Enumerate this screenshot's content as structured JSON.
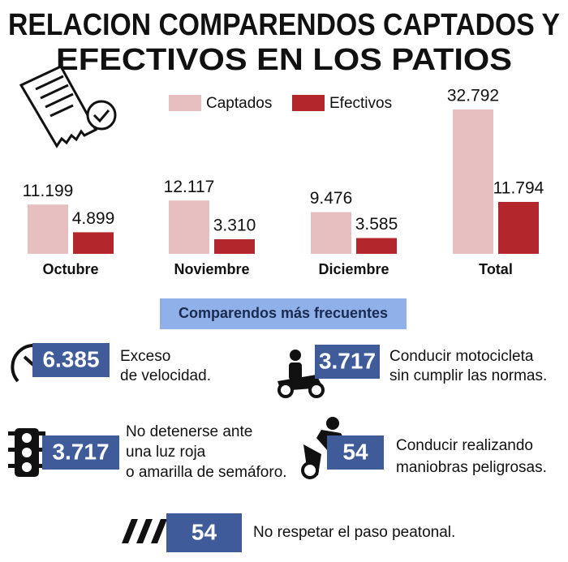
{
  "chart_data": {
    "type": "bar",
    "title": [
      "RELACION COMPARENDOS CAPTADOS Y",
      "EFECTIVOS EN LOS PATIOS"
    ],
    "categories": [
      "Octubre",
      "Noviembre",
      "Diciembre",
      "Total"
    ],
    "series": [
      {
        "name": "Captados",
        "color": "#e8bfc1",
        "values": [
          11199,
          12117,
          9476,
          32792
        ],
        "value_labels": [
          "11.199",
          "12.117",
          "9.476",
          "32.792"
        ]
      },
      {
        "name": "Efectivos",
        "color": "#b3262b",
        "values": [
          4899,
          3310,
          3585,
          11794
        ],
        "value_labels": [
          "4.899",
          "3.310",
          "3.585",
          "11.794"
        ]
      }
    ]
  },
  "infractions": {
    "title": "Comparendos más frecuentes",
    "items": [
      {
        "count": "6.385",
        "lines": [
          "Exceso",
          "de velocidad."
        ]
      },
      {
        "count": "3.717",
        "lines": [
          "Conducir motocicleta",
          "sin cumplir las normas."
        ]
      },
      {
        "count": "3.717",
        "lines": [
          "No detenerse ante",
          "una luz roja",
          "o amarilla de semáforo."
        ]
      },
      {
        "count": "54",
        "lines": [
          "Conducir realizando",
          "maniobras peligrosas."
        ]
      },
      {
        "count": "54",
        "lines": [
          "No respetar el paso peatonal."
        ]
      }
    ]
  }
}
